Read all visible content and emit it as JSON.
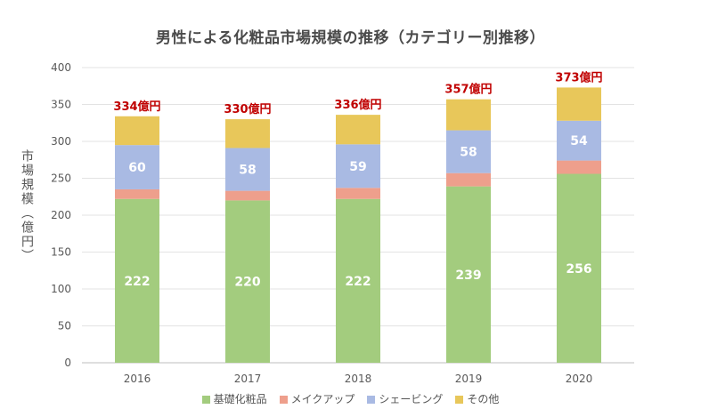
{
  "chart_data": {
    "type": "bar",
    "stacked": true,
    "title": "男性による化粧品市場規模の推移（カテゴリー別推移）",
    "ylabel": "市場規模（億円）",
    "xlabel": "",
    "ylim": [
      0,
      400
    ],
    "yticks": [
      0,
      50,
      100,
      150,
      200,
      250,
      300,
      350,
      400
    ],
    "grid": true,
    "legend_position": "bottom",
    "categories": [
      "2016",
      "2017",
      "2018",
      "2019",
      "2020"
    ],
    "series": [
      {
        "name": "基礎化粧品",
        "color": "#a3cc7e",
        "values": [
          222,
          220,
          222,
          239,
          256
        ],
        "labeled": true
      },
      {
        "name": "メイクアップ",
        "color": "#ee9f8c",
        "values": [
          13,
          13,
          15,
          18,
          18
        ],
        "labeled": false
      },
      {
        "name": "シェービング",
        "color": "#a9bae3",
        "values": [
          60,
          58,
          59,
          58,
          54
        ],
        "labeled": true
      },
      {
        "name": "その他",
        "color": "#e8c75a",
        "values": [
          39,
          39,
          40,
          42,
          45
        ],
        "labeled": false
      }
    ],
    "totals": [
      334,
      330,
      336,
      357,
      373
    ],
    "total_labels": [
      "334億円",
      "330億円",
      "336億円",
      "357億円",
      "373億円"
    ],
    "total_label_color": "#c00000"
  }
}
